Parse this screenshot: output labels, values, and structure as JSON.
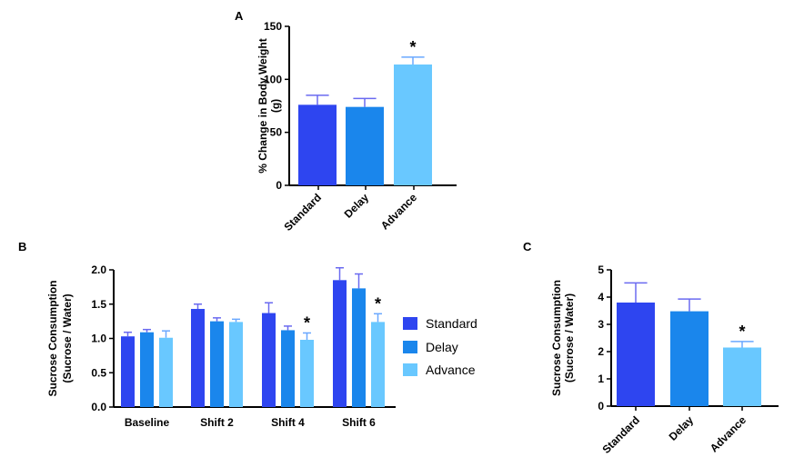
{
  "colors": {
    "Standard": "#2e45f0",
    "Delay": "#1a86ec",
    "Advance": "#69c8ff",
    "error": "#6a6af0",
    "axis": "#000000"
  },
  "chart_data": [
    {
      "panel": "A",
      "type": "bar",
      "ylabel_lines": [
        "% Change in Body Weight",
        "(g)"
      ],
      "ylim": [
        0,
        150
      ],
      "yticks": [
        0,
        50,
        100,
        150
      ],
      "categories": [
        "Standard",
        "Delay",
        "Advance"
      ],
      "values": [
        76,
        74,
        114
      ],
      "errors": [
        9,
        8,
        7
      ],
      "colors": [
        "#2e45f0",
        "#1a86ec",
        "#69c8ff"
      ],
      "significance": [
        "",
        "",
        "*"
      ]
    },
    {
      "panel": "B",
      "type": "bar",
      "ylabel_lines": [
        "Sucrose  Consumption",
        "(Sucrose / Water)"
      ],
      "ylim": [
        0,
        2.0
      ],
      "yticks": [
        "0.0",
        "0.5",
        "1.0",
        "1.5",
        "2.0"
      ],
      "categories": [
        "Baseline",
        "Shift 2",
        "Shift 4",
        "Shift 6"
      ],
      "series": [
        {
          "name": "Standard",
          "values": [
            1.03,
            1.43,
            1.37,
            1.85
          ],
          "errors": [
            0.06,
            0.07,
            0.15,
            0.18
          ],
          "significance": [
            "",
            "",
            "",
            ""
          ]
        },
        {
          "name": "Delay",
          "values": [
            1.09,
            1.25,
            1.12,
            1.73
          ],
          "errors": [
            0.04,
            0.05,
            0.06,
            0.21
          ],
          "significance": [
            "",
            "",
            "",
            ""
          ]
        },
        {
          "name": "Advance",
          "values": [
            1.01,
            1.24,
            0.98,
            1.24
          ],
          "errors": [
            0.1,
            0.04,
            0.1,
            0.12
          ],
          "significance": [
            "",
            "",
            "*",
            "*"
          ]
        }
      ],
      "legend": {
        "position": "right",
        "entries": [
          "Standard",
          "Delay",
          "Advance"
        ]
      }
    },
    {
      "panel": "C",
      "type": "bar",
      "ylabel_lines": [
        "Sucrose  Consumption",
        "(Sucrose / Water)"
      ],
      "ylim": [
        0,
        5
      ],
      "yticks": [
        0,
        1,
        2,
        3,
        4,
        5
      ],
      "categories": [
        "Standard",
        "Delay",
        "Advance"
      ],
      "values": [
        3.8,
        3.48,
        2.15
      ],
      "errors": [
        0.72,
        0.45,
        0.22
      ],
      "colors": [
        "#2e45f0",
        "#1a86ec",
        "#69c8ff"
      ],
      "significance": [
        "",
        "",
        "*"
      ]
    }
  ]
}
